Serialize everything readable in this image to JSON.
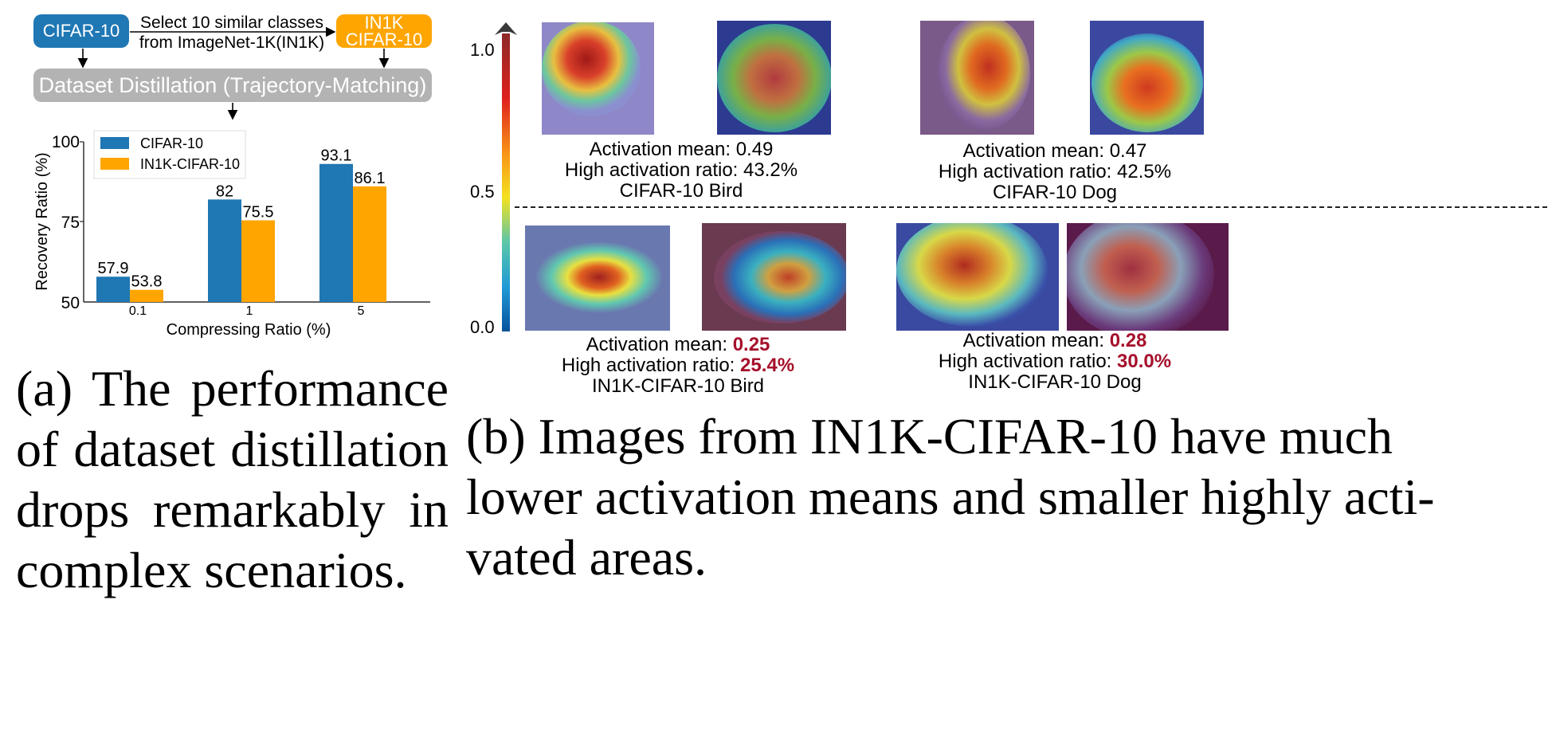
{
  "flow": {
    "cifar_box": "CIFAR-10",
    "select_text_line1": "Select 10 similar classes",
    "select_text_line2": "from ImageNet-1K(IN1K)",
    "in1k_box_line1": "IN1K",
    "in1k_box_line2": "CIFAR-10",
    "distill_box": "Dataset Distillation (Trajectory-Matching)"
  },
  "colors": {
    "cifar": "#1f77b4",
    "in1k": "#ffa500",
    "gray": "#b3b3b3",
    "highlight": "#a50f2b"
  },
  "chart_data": {
    "type": "bar",
    "title": "",
    "xlabel": "Compressing Ratio (%)",
    "ylabel": "Recovery Ratio (%)",
    "categories": [
      "0.1",
      "1",
      "5"
    ],
    "ylim": [
      50,
      100
    ],
    "yticks": [
      "50",
      "75",
      "100"
    ],
    "legend_position": "top-left",
    "series": [
      {
        "name": "CIFAR-10",
        "color": "#1f77b4",
        "values": [
          57.9,
          82,
          93.1
        ],
        "labels": [
          "57.9",
          "82",
          "93.1"
        ]
      },
      {
        "name": "IN1K-CIFAR-10",
        "color": "#ffa500",
        "values": [
          53.8,
          75.5,
          86.1
        ],
        "labels": [
          "53.8",
          "75.5",
          "86.1"
        ]
      }
    ]
  },
  "colorbar": {
    "tick_top": "1.0",
    "tick_mid": "0.5",
    "tick_bottom": "0.0"
  },
  "groups": [
    {
      "id": "cifar-bird",
      "mean_label": "Activation mean: ",
      "mean_value": "0.49",
      "ratio_label": "High activation ratio: ",
      "ratio_value": "43.2%",
      "name": "CIFAR-10 Bird",
      "highlight": false
    },
    {
      "id": "cifar-dog",
      "mean_label": "Activation mean: ",
      "mean_value": "0.47",
      "ratio_label": "High activation ratio: ",
      "ratio_value": "42.5%",
      "name": "CIFAR-10 Dog",
      "highlight": false
    },
    {
      "id": "in1k-bird",
      "mean_label": "Activation mean: ",
      "mean_value": "0.25",
      "ratio_label": "High activation ratio: ",
      "ratio_value": "25.4%",
      "name": "IN1K-CIFAR-10 Bird",
      "highlight": true
    },
    {
      "id": "in1k-dog",
      "mean_label": "Activation mean: ",
      "mean_value": "0.28",
      "ratio_label": "High activation ratio: ",
      "ratio_value": "30.0%",
      "name": "IN1K-CIFAR-10 Dog",
      "highlight": true
    }
  ],
  "captions": {
    "a": "(a) The performance of dataset distillation drops remarkably in complex scenarios.",
    "b_line1": "(b) Images from IN1K-CIFAR-10 have much",
    "b_line2": "lower activation means and smaller highly acti-",
    "b_line3": "vated areas."
  }
}
